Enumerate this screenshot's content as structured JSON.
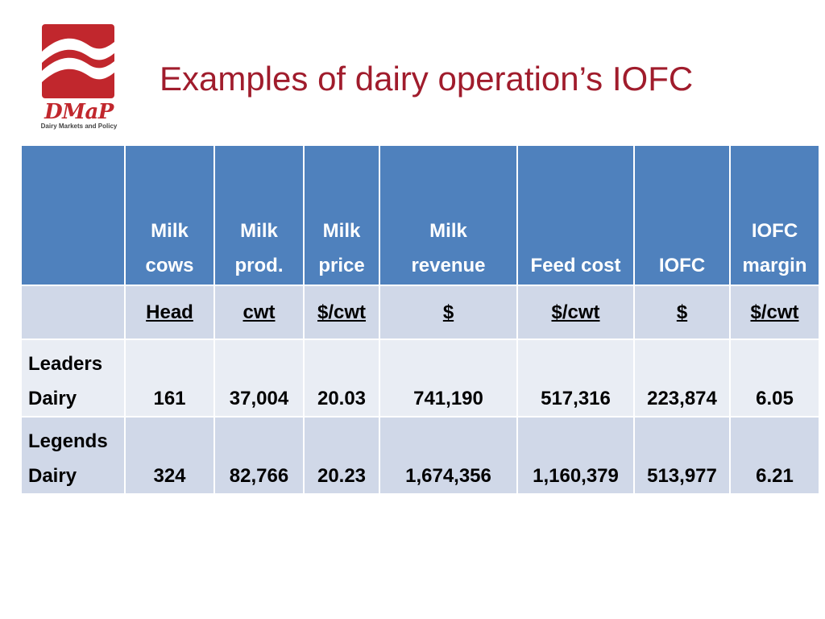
{
  "logo": {
    "wordmark": "DMaP",
    "tagline": "Dairy Markets and Policy",
    "brand_color": "#c1272d"
  },
  "title": "Examples of dairy operation’s IOFC",
  "colors": {
    "title": "#a01c2c",
    "header_fill": "#4f81bd",
    "band_dark": "#d0d8e8",
    "band_light": "#e9edf4"
  },
  "table": {
    "headers": [
      {
        "line1": "",
        "line2": ""
      },
      {
        "line1": "Milk",
        "line2": "cows"
      },
      {
        "line1": "Milk",
        "line2": "prod."
      },
      {
        "line1": "Milk",
        "line2": "price"
      },
      {
        "line1": "Milk",
        "line2": "revenue"
      },
      {
        "line1": "",
        "line2": "Feed cost"
      },
      {
        "line1": "",
        "line2": "IOFC"
      },
      {
        "line1": "IOFC",
        "line2": "margin"
      }
    ],
    "units": [
      "",
      "Head",
      "cwt",
      "$/cwt",
      "$",
      "$/cwt",
      "$",
      "$/cwt"
    ],
    "rows": [
      {
        "label_line1": "Leaders",
        "label_line2": "Dairy",
        "values": [
          "161",
          "37,004",
          "20.03",
          "741,190",
          "517,316",
          "223,874",
          "6.05"
        ]
      },
      {
        "label_line1": "Legends",
        "label_line2": "Dairy",
        "values": [
          "324",
          "82,766",
          "20.23",
          "1,674,356",
          "1,160,379",
          "513,977",
          "6.21"
        ]
      }
    ]
  }
}
